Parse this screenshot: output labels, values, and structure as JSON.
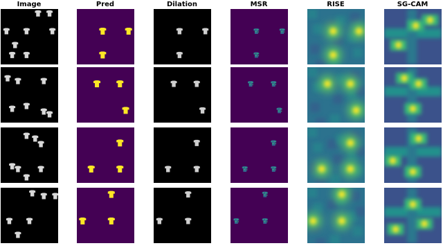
{
  "columns": [
    "Image",
    "Pred",
    "Dilation",
    "MSR",
    "RISE",
    "SG-CAM"
  ]
}
